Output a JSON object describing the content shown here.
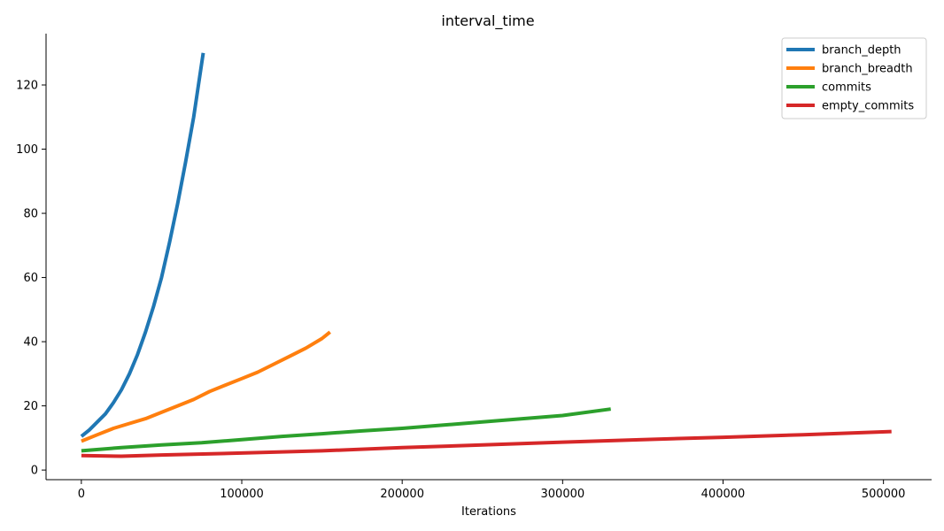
{
  "chart_data": {
    "type": "line",
    "title": "interval_time",
    "xlabel": "Iterations",
    "ylabel": "",
    "xlim": [
      -22000,
      530000
    ],
    "ylim": [
      -3,
      136
    ],
    "xticks": [
      0,
      100000,
      200000,
      300000,
      400000,
      500000
    ],
    "yticks": [
      0,
      20,
      40,
      60,
      80,
      100,
      120
    ],
    "grid": false,
    "legend_position": "top-right",
    "series": [
      {
        "name": "branch_depth",
        "color": "#1f77b4",
        "x": [
          0,
          5000,
          10000,
          15000,
          20000,
          25000,
          30000,
          35000,
          40000,
          45000,
          50000,
          55000,
          60000,
          65000,
          70000,
          73000,
          76000
        ],
        "y": [
          10.5,
          12.5,
          15,
          17.5,
          21,
          25,
          30,
          36,
          43,
          51,
          60,
          71,
          83,
          96,
          110,
          120,
          130
        ]
      },
      {
        "name": "branch_breadth",
        "color": "#ff7f0e",
        "x": [
          0,
          10000,
          20000,
          30000,
          40000,
          50000,
          60000,
          70000,
          80000,
          90000,
          100000,
          110000,
          120000,
          130000,
          140000,
          150000,
          155000
        ],
        "y": [
          9,
          11,
          13,
          14.5,
          16,
          18,
          20,
          22,
          24.5,
          26.5,
          28.5,
          30.5,
          33,
          35.5,
          38,
          41,
          43
        ]
      },
      {
        "name": "commits",
        "color": "#2ca02c",
        "x": [
          0,
          25000,
          50000,
          75000,
          100000,
          125000,
          150000,
          175000,
          200000,
          225000,
          250000,
          275000,
          300000,
          330000
        ],
        "y": [
          6,
          7,
          7.8,
          8.5,
          9.5,
          10.5,
          11.3,
          12.2,
          13,
          14,
          15,
          16,
          17,
          19
        ]
      },
      {
        "name": "empty_commits",
        "color": "#d62728",
        "x": [
          0,
          25000,
          50000,
          100000,
          150000,
          200000,
          250000,
          300000,
          350000,
          400000,
          450000,
          505000
        ],
        "y": [
          4.5,
          4.3,
          4.7,
          5.3,
          6,
          7,
          7.8,
          8.7,
          9.5,
          10.2,
          11,
          12
        ]
      }
    ]
  }
}
